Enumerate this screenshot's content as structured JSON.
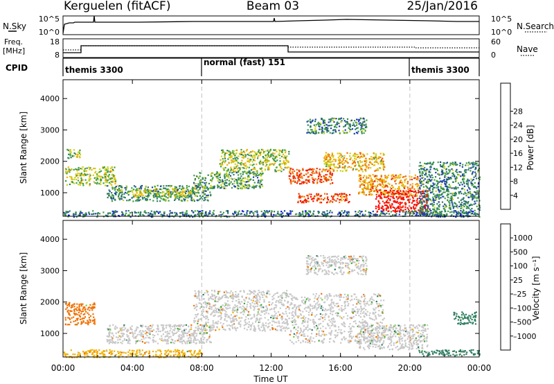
{
  "header": {
    "station": "Kerguelen (fitACF)",
    "beam": "Beam 03",
    "date": "25/Jan/2016"
  },
  "nsky_panel": {
    "label_left": "N.Sky",
    "label_right": "N.Search",
    "left_ticks": [
      "10^5",
      "10^0"
    ],
    "right_ticks": [
      "10^5",
      "10^0"
    ]
  },
  "freq_panel": {
    "label_left_1": "Freq.",
    "label_left_2": "[MHz]",
    "label_right": "Nave",
    "left_ticks": [
      "18",
      "8"
    ],
    "right_ticks": [
      "60",
      "0"
    ]
  },
  "cpid_panel": {
    "label": "CPID",
    "segments": [
      {
        "text": "themis 3300",
        "start_hour": 0,
        "end_hour": 8
      },
      {
        "text": "normal (fast) 151",
        "start_hour": 8,
        "end_hour": 20
      },
      {
        "text": "themis 3300",
        "start_hour": 20,
        "end_hour": 24
      }
    ]
  },
  "chart_data": [
    {
      "type": "heatmap",
      "panel": "power",
      "ylabel": "Slant Range [km]",
      "ylim": [
        250,
        4600
      ],
      "y_ticks": [
        1000,
        2000,
        3000,
        4000
      ],
      "xlim": [
        0,
        24
      ],
      "colorbar_label": "Power [dB]",
      "colorbar_ticks": [
        "4",
        "8",
        "12",
        "16",
        "20",
        "24",
        "28"
      ],
      "colorbar_colors": [
        "#0000ff",
        "#1f3fb0",
        "#2e7d60",
        "#3f9e3f",
        "#c9d21a",
        "#f4b000",
        "#f07000",
        "#e83000",
        "#ff0000"
      ],
      "echo_regions": [
        {
          "t0": 0.1,
          "t1": 3.0,
          "r0": 1250,
          "r1": 1850,
          "level": 14
        },
        {
          "t0": 0.2,
          "t1": 1.0,
          "r0": 2100,
          "r1": 2400,
          "level": 13
        },
        {
          "t0": 2.5,
          "t1": 8.5,
          "r0": 750,
          "r1": 1250,
          "level": 10
        },
        {
          "t0": 4.0,
          "t1": 7.8,
          "r0": 900,
          "r1": 1150,
          "level": 15
        },
        {
          "t0": 7.5,
          "t1": 11.5,
          "r0": 1150,
          "r1": 1700,
          "level": 11
        },
        {
          "t0": 9.0,
          "t1": 13.0,
          "r0": 1700,
          "r1": 2400,
          "level": 14
        },
        {
          "t0": 13.0,
          "t1": 15.5,
          "r0": 1300,
          "r1": 1800,
          "level": 24
        },
        {
          "t0": 13.5,
          "t1": 16.5,
          "r0": 700,
          "r1": 1000,
          "level": 24
        },
        {
          "t0": 15.0,
          "t1": 18.5,
          "r0": 1700,
          "r1": 2300,
          "level": 18
        },
        {
          "t0": 14.0,
          "t1": 17.5,
          "r0": 2900,
          "r1": 3400,
          "level": 9
        },
        {
          "t0": 17.0,
          "t1": 20.5,
          "r0": 900,
          "r1": 1600,
          "level": 20
        },
        {
          "t0": 18.0,
          "t1": 21.0,
          "r0": 400,
          "r1": 1100,
          "level": 28
        },
        {
          "t0": 20.5,
          "t1": 24.0,
          "r0": 300,
          "r1": 2000,
          "level": 9
        },
        {
          "t0": 0.0,
          "t1": 24.0,
          "r0": 250,
          "r1": 450,
          "level": 8
        }
      ]
    },
    {
      "type": "heatmap",
      "panel": "velocity",
      "ylabel": "Slant Range [km]",
      "ylim": [
        250,
        4600
      ],
      "y_ticks": [
        1000,
        2000,
        3000,
        4000
      ],
      "xlim": [
        0,
        24
      ],
      "x_ticks": [
        "00:00",
        "04:00",
        "08:00",
        "12:00",
        "16:00",
        "20:00",
        "00:00"
      ],
      "xlabel": "Time UT",
      "colorbar_label": "Velocity [m s⁻¹]",
      "colorbar_ticks": [
        "1000",
        "500",
        "100",
        "25",
        "–25",
        "–100",
        "–500",
        "–1000"
      ],
      "colorbar_colors": [
        "#2040c0",
        "#2e7d60",
        "#3faa30",
        "#6fd030",
        "#c8c8c8",
        "#c8c8c8",
        "#f0b000",
        "#f07000",
        "#ff2000"
      ],
      "echo_regions": [
        {
          "t0": 0.1,
          "t1": 1.8,
          "r0": 1300,
          "r1": 2000,
          "level": -100
        },
        {
          "t0": 2.5,
          "t1": 8.5,
          "r0": 700,
          "r1": 1300,
          "level": 0
        },
        {
          "t0": 7.5,
          "t1": 13.0,
          "r0": 1100,
          "r1": 2400,
          "level": 0
        },
        {
          "t0": 13.0,
          "t1": 18.5,
          "r0": 700,
          "r1": 2300,
          "level": 0
        },
        {
          "t0": 14.0,
          "t1": 17.5,
          "r0": 2900,
          "r1": 3500,
          "level": 0
        },
        {
          "t0": 17.0,
          "t1": 21.0,
          "r0": 500,
          "r1": 1300,
          "level": 0
        },
        {
          "t0": 20.5,
          "t1": 24.0,
          "r0": 300,
          "r1": 500,
          "level": 120
        },
        {
          "t0": 22.5,
          "t1": 23.8,
          "r0": 1300,
          "r1": 1700,
          "level": 150
        },
        {
          "t0": 0.0,
          "t1": 8.0,
          "r0": 250,
          "r1": 500,
          "level": -60
        }
      ]
    }
  ]
}
